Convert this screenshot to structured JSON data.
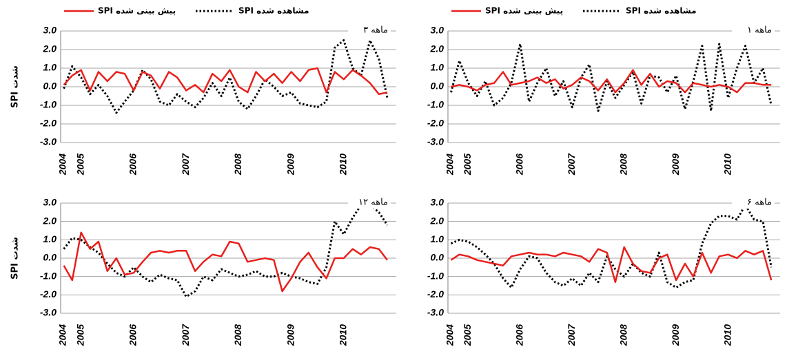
{
  "chart_data": [
    {
      "type": "line",
      "title": "۳ ماهه",
      "y_label": "شدت SPI",
      "legend": true,
      "x": [
        2004.67,
        2004.83,
        2005.0,
        2005.17,
        2005.33,
        2005.5,
        2005.67,
        2005.83,
        2006.0,
        2006.17,
        2006.33,
        2006.5,
        2006.67,
        2006.83,
        2007.0,
        2007.17,
        2007.33,
        2007.5,
        2007.67,
        2007.83,
        2008.0,
        2008.17,
        2008.33,
        2008.5,
        2008.67,
        2008.83,
        2009.0,
        2009.17,
        2009.33,
        2009.5,
        2009.67,
        2009.83,
        2010.0,
        2010.17,
        2010.33,
        2010.5,
        2010.67,
        2010.83
      ],
      "series": [
        {
          "name": "SPI مشاهده شده",
          "color": "#000000",
          "style": "dotted",
          "values": [
            -0.1,
            1.1,
            0.5,
            -0.4,
            0.1,
            -0.5,
            -1.4,
            -0.8,
            -0.2,
            0.9,
            0.4,
            -0.8,
            -1.0,
            -0.4,
            -0.8,
            -1.1,
            -0.6,
            0.2,
            -0.5,
            0.5,
            -0.8,
            -1.2,
            -0.5,
            0.4,
            0.0,
            -0.5,
            -0.3,
            -0.9,
            -1.0,
            -1.1,
            -0.8,
            2.1,
            2.5,
            1.0,
            0.6,
            2.5,
            1.5,
            -0.6
          ]
        },
        {
          "name": "SPI پیش بینی شده",
          "color": "#e8201c",
          "style": "solid",
          "values": [
            0.1,
            0.6,
            0.9,
            -0.2,
            0.8,
            0.3,
            0.8,
            0.7,
            -0.2,
            0.8,
            0.6,
            -0.1,
            0.8,
            0.5,
            -0.2,
            0.1,
            -0.3,
            0.7,
            0.3,
            0.9,
            0.0,
            -0.3,
            0.8,
            0.3,
            0.7,
            0.2,
            0.8,
            0.3,
            0.9,
            1.0,
            -0.3,
            0.8,
            0.4,
            0.9,
            0.6,
            0.2,
            -0.4,
            -0.3
          ]
        }
      ],
      "xlim": [
        2004.61,
        2011.0
      ],
      "xticks": [
        {
          "value": 2004.66,
          "label": "2004"
        },
        2005,
        2006,
        2007,
        2008,
        2009,
        2010
      ],
      "ylim": [
        -3,
        3
      ],
      "yticks": [
        {
          "value": 3,
          "label": "3.0"
        },
        {
          "value": 2,
          "label": "2.0"
        },
        {
          "value": 1,
          "label": "1.0"
        },
        {
          "value": 0,
          "label": "0.0"
        },
        {
          "value": -1,
          "label": "-1.0"
        },
        {
          "value": -2,
          "label": "-2.0"
        },
        {
          "value": -3,
          "label": "-3.0"
        }
      ],
      "grid": true
    },
    {
      "type": "line",
      "title": "۱ ماهه",
      "legend": true,
      "x": [
        2004.67,
        2004.83,
        2005.0,
        2005.17,
        2005.33,
        2005.5,
        2005.67,
        2005.83,
        2006.0,
        2006.17,
        2006.33,
        2006.5,
        2006.67,
        2006.83,
        2007.0,
        2007.17,
        2007.33,
        2007.5,
        2007.67,
        2007.83,
        2008.0,
        2008.17,
        2008.33,
        2008.5,
        2008.67,
        2008.83,
        2009.0,
        2009.17,
        2009.33,
        2009.5,
        2009.67,
        2009.83,
        2010.0,
        2010.17,
        2010.33,
        2010.5,
        2010.67,
        2010.83
      ],
      "series": [
        {
          "name": "SPI مشاهده شده",
          "color": "#000000",
          "style": "dotted",
          "values": [
            -0.3,
            1.4,
            0.2,
            -0.5,
            0.3,
            -1.0,
            -0.6,
            0.2,
            2.3,
            -0.8,
            0.2,
            1.0,
            -0.5,
            0.3,
            -1.1,
            0.5,
            1.2,
            -1.3,
            0.3,
            -0.6,
            0.1,
            0.8,
            -0.9,
            0.6,
            0.5,
            -0.3,
            0.6,
            -1.2,
            0.3,
            2.2,
            -1.3,
            2.3,
            -0.6,
            1.0,
            2.2,
            0.2,
            1.0,
            -1.0
          ]
        },
        {
          "name": "SPI پیش بینی شده",
          "color": "#e8201c",
          "style": "solid",
          "values": [
            0.0,
            0.1,
            0.0,
            -0.2,
            0.1,
            0.2,
            0.8,
            0.1,
            0.2,
            0.3,
            0.5,
            0.2,
            0.4,
            -0.1,
            0.1,
            0.5,
            0.3,
            -0.2,
            0.4,
            -0.3,
            0.2,
            0.9,
            0.1,
            0.7,
            0.0,
            0.3,
            0.2,
            -0.3,
            0.2,
            0.1,
            0.0,
            0.1,
            0.0,
            -0.3,
            0.2,
            0.2,
            0.1,
            0.1
          ]
        }
      ],
      "xlim": [
        2004.61,
        2011.0
      ],
      "xticks": [
        {
          "value": 2004.66,
          "label": "2004"
        },
        2005,
        2006,
        2007,
        2008,
        2009,
        2010
      ],
      "ylim": [
        -3,
        3
      ],
      "yticks": [
        {
          "value": 3,
          "label": "3.0"
        },
        {
          "value": 2,
          "label": "2.0"
        },
        {
          "value": 1,
          "label": "1.0"
        },
        {
          "value": 0,
          "label": "0.0"
        },
        {
          "value": -1,
          "label": "-1.0"
        },
        {
          "value": -2,
          "label": "-2.0"
        },
        {
          "value": -3,
          "label": "-3.0"
        }
      ],
      "grid": true
    },
    {
      "type": "line",
      "title": "۱۲ ماهه",
      "y_label": "شدت SPI",
      "legend": false,
      "x": [
        2004.67,
        2004.83,
        2005.0,
        2005.17,
        2005.33,
        2005.5,
        2005.67,
        2005.83,
        2006.0,
        2006.17,
        2006.33,
        2006.5,
        2006.67,
        2006.83,
        2007.0,
        2007.17,
        2007.33,
        2007.5,
        2007.67,
        2007.83,
        2008.0,
        2008.17,
        2008.33,
        2008.5,
        2008.67,
        2008.83,
        2009.0,
        2009.17,
        2009.33,
        2009.5,
        2009.67,
        2009.83,
        2010.0,
        2010.17,
        2010.33,
        2010.5,
        2010.67,
        2010.83
      ],
      "series": [
        {
          "color": "#000000",
          "style": "dotted",
          "values": [
            0.5,
            1.1,
            1.0,
            0.6,
            0.3,
            -0.3,
            -0.8,
            -1.0,
            -0.5,
            -1.0,
            -1.3,
            -0.9,
            -1.1,
            -1.2,
            -2.1,
            -1.8,
            -1.0,
            -1.2,
            -0.6,
            -0.8,
            -1.0,
            -0.9,
            -0.7,
            -1.0,
            -1.0,
            -0.8,
            -1.0,
            -1.1,
            -1.3,
            -1.4,
            -0.5,
            2.0,
            1.3,
            2.2,
            2.9,
            2.9,
            2.5,
            1.8
          ]
        },
        {
          "color": "#e8201c",
          "style": "solid",
          "values": [
            -0.4,
            -1.2,
            1.4,
            0.5,
            0.9,
            -0.7,
            0.0,
            -0.9,
            -0.8,
            -0.2,
            0.3,
            0.4,
            0.3,
            0.4,
            0.4,
            -0.7,
            -0.2,
            0.2,
            0.1,
            0.9,
            0.8,
            -0.2,
            -0.1,
            0.0,
            -0.1,
            -1.8,
            -1.1,
            -0.2,
            0.3,
            -0.5,
            -1.1,
            0.0,
            0.0,
            0.5,
            0.2,
            0.6,
            0.5,
            -0.1
          ]
        }
      ],
      "xlim": [
        2004.61,
        2011.0
      ],
      "xticks": [
        {
          "value": 2004.66,
          "label": "2004"
        },
        2005,
        2006,
        2007,
        2008,
        2009,
        2010
      ],
      "ylim": [
        -3,
        3
      ],
      "yticks": [
        {
          "value": 3,
          "label": "3.0"
        },
        {
          "value": 2,
          "label": "2.0"
        },
        {
          "value": 1,
          "label": "1.0"
        },
        {
          "value": 0,
          "label": "0.0"
        },
        {
          "value": -1,
          "label": "-1.0"
        },
        {
          "value": -2,
          "label": "-2.0"
        },
        {
          "value": -3,
          "label": "-3.0"
        }
      ],
      "grid": true
    },
    {
      "type": "line",
      "title": "۶ ماهه",
      "legend": false,
      "x": [
        2004.67,
        2004.83,
        2005.0,
        2005.17,
        2005.33,
        2005.5,
        2005.67,
        2005.83,
        2006.0,
        2006.17,
        2006.33,
        2006.5,
        2006.67,
        2006.83,
        2007.0,
        2007.17,
        2007.33,
        2007.5,
        2007.67,
        2007.83,
        2008.0,
        2008.17,
        2008.33,
        2008.5,
        2008.67,
        2008.83,
        2009.0,
        2009.17,
        2009.33,
        2009.5,
        2009.67,
        2009.83,
        2010.0,
        2010.17,
        2010.33,
        2010.5,
        2010.67,
        2010.83
      ],
      "series": [
        {
          "color": "#000000",
          "style": "dotted",
          "values": [
            0.8,
            1.0,
            0.9,
            0.6,
            0.2,
            -0.3,
            -1.1,
            -1.6,
            -0.6,
            0.1,
            0.0,
            -0.8,
            -1.3,
            -1.5,
            -1.1,
            -1.5,
            -0.8,
            -1.3,
            0.1,
            -0.6,
            -1.0,
            -0.3,
            -0.8,
            -1.0,
            0.3,
            -1.3,
            -1.6,
            -1.3,
            -1.2,
            0.8,
            1.9,
            2.3,
            2.3,
            2.1,
            2.9,
            2.1,
            2.0,
            -0.5
          ]
        },
        {
          "color": "#e8201c",
          "style": "solid",
          "values": [
            -0.1,
            0.2,
            0.1,
            -0.1,
            -0.2,
            -0.3,
            -0.4,
            0.1,
            0.2,
            0.3,
            0.2,
            0.2,
            0.1,
            0.3,
            0.2,
            0.1,
            -0.2,
            0.5,
            0.3,
            -1.3,
            0.6,
            -0.3,
            -0.7,
            -0.8,
            0.0,
            0.2,
            -1.2,
            -0.3,
            -1.0,
            0.3,
            -0.8,
            0.1,
            0.2,
            0.0,
            0.4,
            0.2,
            0.4,
            -1.2
          ]
        }
      ],
      "xlim": [
        2004.61,
        2011.0
      ],
      "xticks": [
        {
          "value": 2004.66,
          "label": "2004"
        },
        2005,
        2006,
        2007,
        2008,
        2009,
        2010
      ],
      "ylim": [
        -3,
        3
      ],
      "yticks": [
        {
          "value": 3,
          "label": "3.0"
        },
        {
          "value": 2,
          "label": "2.0"
        },
        {
          "value": 1,
          "label": "1.0"
        },
        {
          "value": 0,
          "label": "0.0"
        },
        {
          "value": -1,
          "label": "-1.0"
        },
        {
          "value": -2,
          "label": "-2.0"
        },
        {
          "value": -3,
          "label": "-3.0"
        }
      ],
      "grid": true
    }
  ]
}
